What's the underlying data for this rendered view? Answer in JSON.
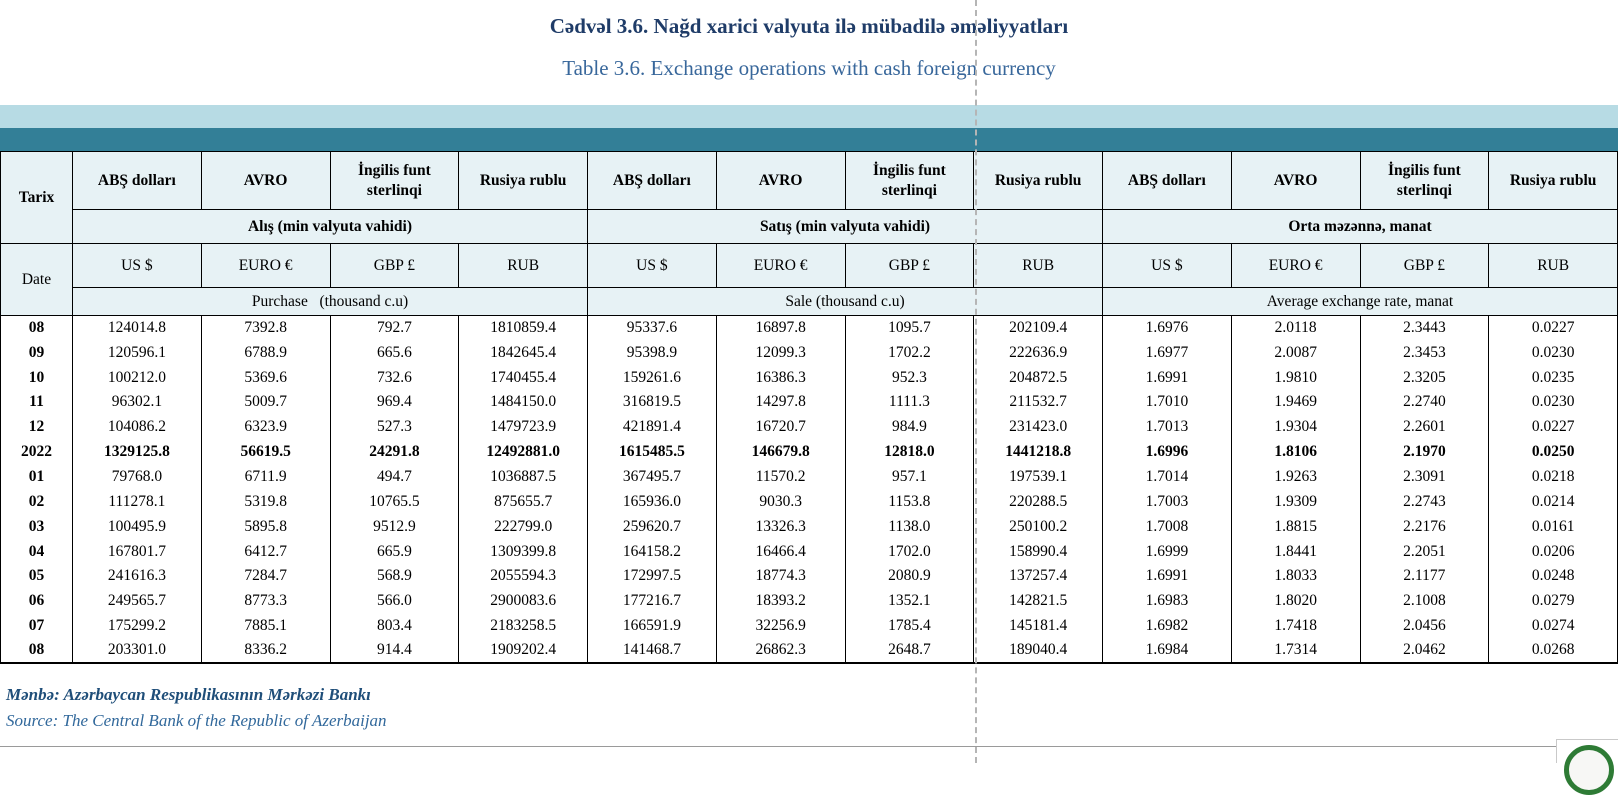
{
  "title": {
    "az": "Cədvəl 3.6. Nağd xarici valyuta ilə mübadilə əməliyyatları",
    "en": "Table 3.6. Exchange operations with cash foreign currency"
  },
  "colors": {
    "title_az": "#1F3C68",
    "title_en": "#38679B",
    "band_light": "#B7DBE4",
    "band_teal": "#337F97",
    "header_cell_bg": "#E7F2F5",
    "logo_green": "#2E7B35",
    "pagebreak_dash": "#b5b5b5"
  },
  "logo": {
    "icon": "central-bank-logo-circle",
    "color": "#2E7B35"
  },
  "table": {
    "date_header_az": "Tarix",
    "date_header_en": "Date",
    "currency_names_az": [
      "ABŞ dolları",
      "AVRO",
      "İngilis funt sterlinqi",
      "Rusiya rublu"
    ],
    "currency_codes_en": [
      "US $",
      "EURO €",
      "GBP £",
      "RUB"
    ],
    "groups": [
      {
        "label_az": "Alış (min valyuta vahidi)",
        "label_en": "Purchase   (thousand c.u)"
      },
      {
        "label_az": "Satış (min valyuta vahidi)",
        "label_en": "Sale (thousand c.u)"
      },
      {
        "label_az": "Orta məzənnə, manat",
        "label_en": "Average exchange rate, manat"
      }
    ],
    "rows": [
      {
        "date": "08",
        "bold": false,
        "values": [
          "124014.8",
          "7392.8",
          "792.7",
          "1810859.4",
          "95337.6",
          "16897.8",
          "1095.7",
          "202109.4",
          "1.6976",
          "2.0118",
          "2.3443",
          "0.0227"
        ]
      },
      {
        "date": "09",
        "bold": false,
        "values": [
          "120596.1",
          "6788.9",
          "665.6",
          "1842645.4",
          "95398.9",
          "12099.3",
          "1702.2",
          "222636.9",
          "1.6977",
          "2.0087",
          "2.3453",
          "0.0230"
        ]
      },
      {
        "date": "10",
        "bold": false,
        "values": [
          "100212.0",
          "5369.6",
          "732.6",
          "1740455.4",
          "159261.6",
          "16386.3",
          "952.3",
          "204872.5",
          "1.6991",
          "1.9810",
          "2.3205",
          "0.0235"
        ]
      },
      {
        "date": "11",
        "bold": false,
        "values": [
          "96302.1",
          "5009.7",
          "969.4",
          "1484150.0",
          "316819.5",
          "14297.8",
          "1111.3",
          "211532.7",
          "1.7010",
          "1.9469",
          "2.2740",
          "0.0230"
        ]
      },
      {
        "date": "12",
        "bold": false,
        "values": [
          "104086.2",
          "6323.9",
          "527.3",
          "1479723.9",
          "421891.4",
          "16720.7",
          "984.9",
          "231423.0",
          "1.7013",
          "1.9304",
          "2.2601",
          "0.0227"
        ]
      },
      {
        "date": "2022",
        "bold": true,
        "values": [
          "1329125.8",
          "56619.5",
          "24291.8",
          "12492881.0",
          "1615485.5",
          "146679.8",
          "12818.0",
          "1441218.8",
          "1.6996",
          "1.8106",
          "2.1970",
          "0.0250"
        ]
      },
      {
        "date": "01",
        "bold": false,
        "values": [
          "79768.0",
          "6711.9",
          "494.7",
          "1036887.5",
          "367495.7",
          "11570.2",
          "957.1",
          "197539.1",
          "1.7014",
          "1.9263",
          "2.3091",
          "0.0218"
        ]
      },
      {
        "date": "02",
        "bold": false,
        "values": [
          "111278.1",
          "5319.8",
          "10765.5",
          "875655.7",
          "165936.0",
          "9030.3",
          "1153.8",
          "220288.5",
          "1.7003",
          "1.9309",
          "2.2743",
          "0.0214"
        ]
      },
      {
        "date": "03",
        "bold": false,
        "values": [
          "100495.9",
          "5895.8",
          "9512.9",
          "222799.0",
          "259620.7",
          "13326.3",
          "1138.0",
          "250100.2",
          "1.7008",
          "1.8815",
          "2.2176",
          "0.0161"
        ]
      },
      {
        "date": "04",
        "bold": false,
        "values": [
          "167801.7",
          "6412.7",
          "665.9",
          "1309399.8",
          "164158.2",
          "16466.4",
          "1702.0",
          "158990.4",
          "1.6999",
          "1.8441",
          "2.2051",
          "0.0206"
        ]
      },
      {
        "date": "05",
        "bold": false,
        "values": [
          "241616.3",
          "7284.7",
          "568.9",
          "2055594.3",
          "172997.5",
          "18774.3",
          "2080.9",
          "137257.4",
          "1.6991",
          "1.8033",
          "2.1177",
          "0.0248"
        ]
      },
      {
        "date": "06",
        "bold": false,
        "values": [
          "249565.7",
          "8773.3",
          "566.0",
          "2900083.6",
          "177216.7",
          "18393.2",
          "1352.1",
          "142821.5",
          "1.6983",
          "1.8020",
          "2.1008",
          "0.0279"
        ]
      },
      {
        "date": "07",
        "bold": false,
        "values": [
          "175299.2",
          "7885.1",
          "803.4",
          "2183258.5",
          "166591.9",
          "32256.9",
          "1785.4",
          "145181.4",
          "1.6982",
          "1.7418",
          "2.0456",
          "0.0274"
        ]
      },
      {
        "date": "08",
        "bold": false,
        "values": [
          "203301.0",
          "8336.2",
          "914.4",
          "1909202.4",
          "141468.7",
          "26862.3",
          "2648.7",
          "189040.4",
          "1.6984",
          "1.7314",
          "2.0462",
          "0.0268"
        ]
      }
    ]
  },
  "footer": {
    "az": "Mənbə: Azərbaycan Respublikasının Mərkəzi Bankı",
    "en": "Source: The Central Bank of the Republic of Azerbaijan"
  }
}
